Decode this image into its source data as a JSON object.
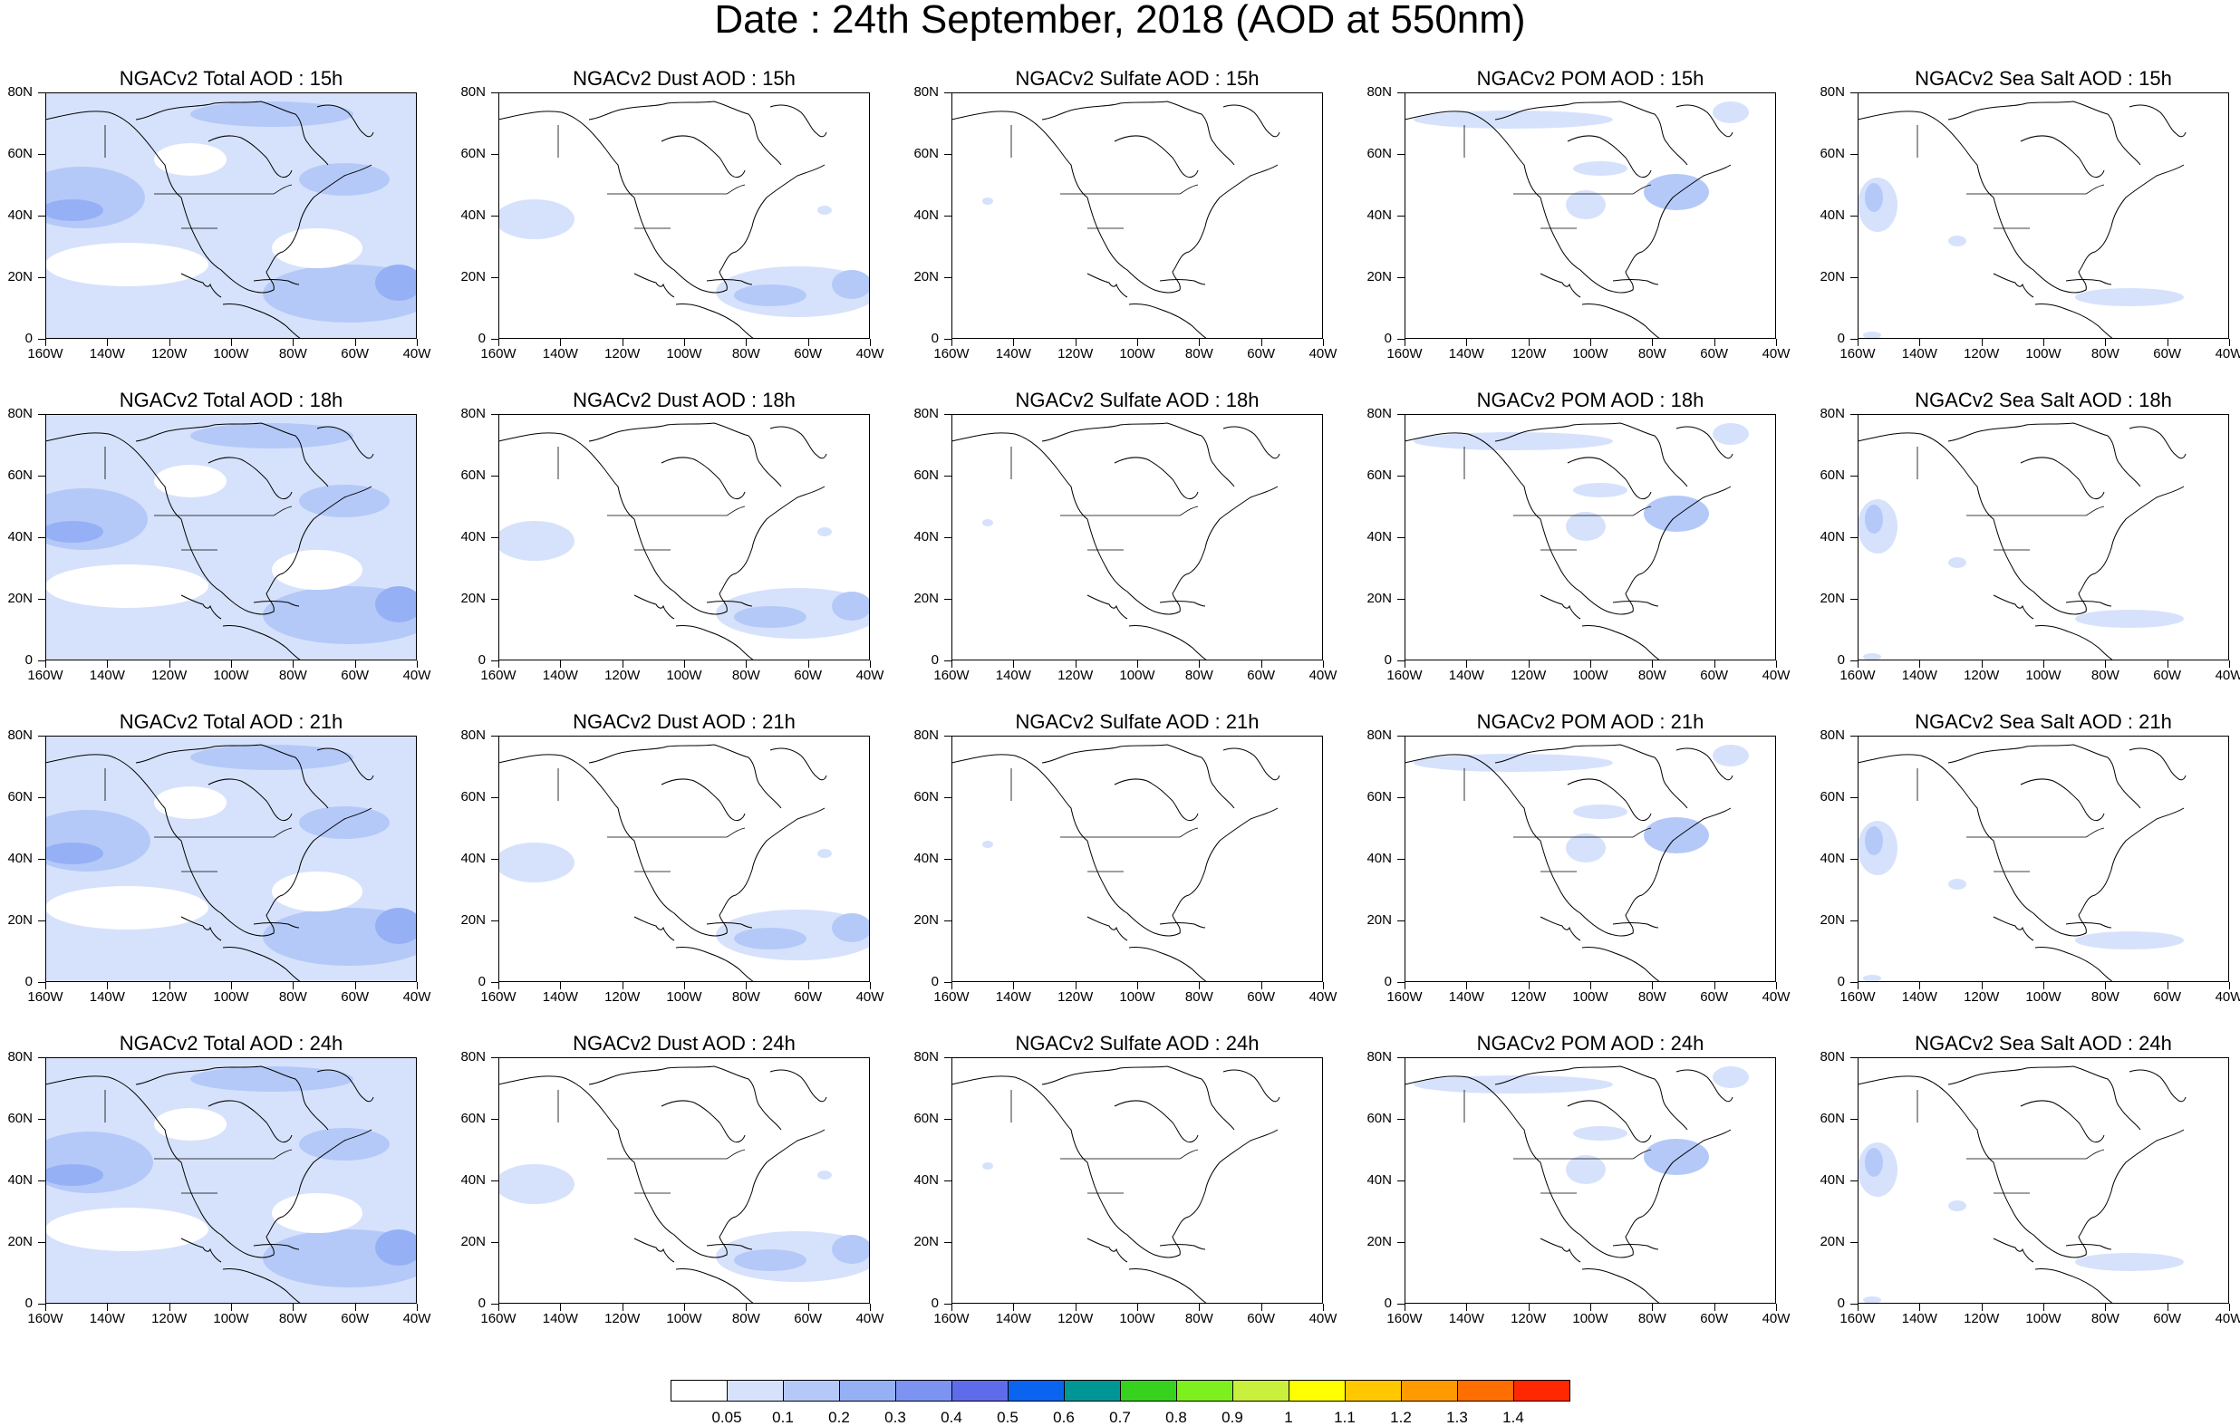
{
  "title": "Date : 24th September, 2018 (AOD at 550nm)",
  "lat_labels": [
    "80N",
    "60N",
    "40N",
    "20N",
    "0"
  ],
  "lon_labels": [
    "160W",
    "140W",
    "120W",
    "100W",
    "80W",
    "60W",
    "40W"
  ],
  "panels": [
    [
      {
        "title": "NGACv2 Total AOD : 15h",
        "species": "total",
        "hour": "15h"
      },
      {
        "title": "NGACv2 Dust AOD : 15h",
        "species": "dust",
        "hour": "15h"
      },
      {
        "title": "NGACv2 Sulfate AOD : 15h",
        "species": "sulfate",
        "hour": "15h"
      },
      {
        "title": "NGACv2 POM AOD : 15h",
        "species": "pom",
        "hour": "15h"
      },
      {
        "title": "NGACv2 Sea Salt AOD : 15h",
        "species": "seasalt",
        "hour": "15h"
      }
    ],
    [
      {
        "title": "NGACv2 Total AOD : 18h",
        "species": "total",
        "hour": "18h"
      },
      {
        "title": "NGACv2 Dust AOD : 18h",
        "species": "dust",
        "hour": "18h"
      },
      {
        "title": "NGACv2 Sulfate AOD : 18h",
        "species": "sulfate",
        "hour": "18h"
      },
      {
        "title": "NGACv2 POM AOD : 18h",
        "species": "pom",
        "hour": "18h"
      },
      {
        "title": "NGACv2 Sea Salt AOD : 18h",
        "species": "seasalt",
        "hour": "18h"
      }
    ],
    [
      {
        "title": "NGACv2 Total AOD : 21h",
        "species": "total",
        "hour": "21h"
      },
      {
        "title": "NGACv2 Dust AOD : 21h",
        "species": "dust",
        "hour": "21h"
      },
      {
        "title": "NGACv2 Sulfate AOD : 21h",
        "species": "sulfate",
        "hour": "21h"
      },
      {
        "title": "NGACv2 POM AOD : 21h",
        "species": "pom",
        "hour": "21h"
      },
      {
        "title": "NGACv2 Sea Salt AOD : 21h",
        "species": "seasalt",
        "hour": "21h"
      }
    ],
    [
      {
        "title": "NGACv2 Total AOD : 24h",
        "species": "total",
        "hour": "24h"
      },
      {
        "title": "NGACv2 Dust AOD : 24h",
        "species": "dust",
        "hour": "24h"
      },
      {
        "title": "NGACv2 Sulfate AOD : 24h",
        "species": "sulfate",
        "hour": "24h"
      },
      {
        "title": "NGACv2 POM AOD : 24h",
        "species": "pom",
        "hour": "24h"
      },
      {
        "title": "NGACv2 Sea Salt  AOD : 24h",
        "species": "seasalt",
        "hour": "24h"
      }
    ]
  ],
  "colorbar": {
    "labels": [
      "0.05",
      "0.1",
      "0.2",
      "0.3",
      "0.4",
      "0.5",
      "0.6",
      "0.7",
      "0.8",
      "0.9",
      "1",
      "1.1",
      "1.2",
      "1.3",
      "1.4"
    ],
    "colors": [
      "#ffffff",
      "#d6e2fc",
      "#b4c9f8",
      "#96b0f6",
      "#7d93f2",
      "#5f6cea",
      "#0a64f0",
      "#009696",
      "#36d21e",
      "#7ef01e",
      "#c8f03c",
      "#ffff00",
      "#ffc800",
      "#ff9b00",
      "#ff6e00",
      "#ff2800"
    ]
  }
}
